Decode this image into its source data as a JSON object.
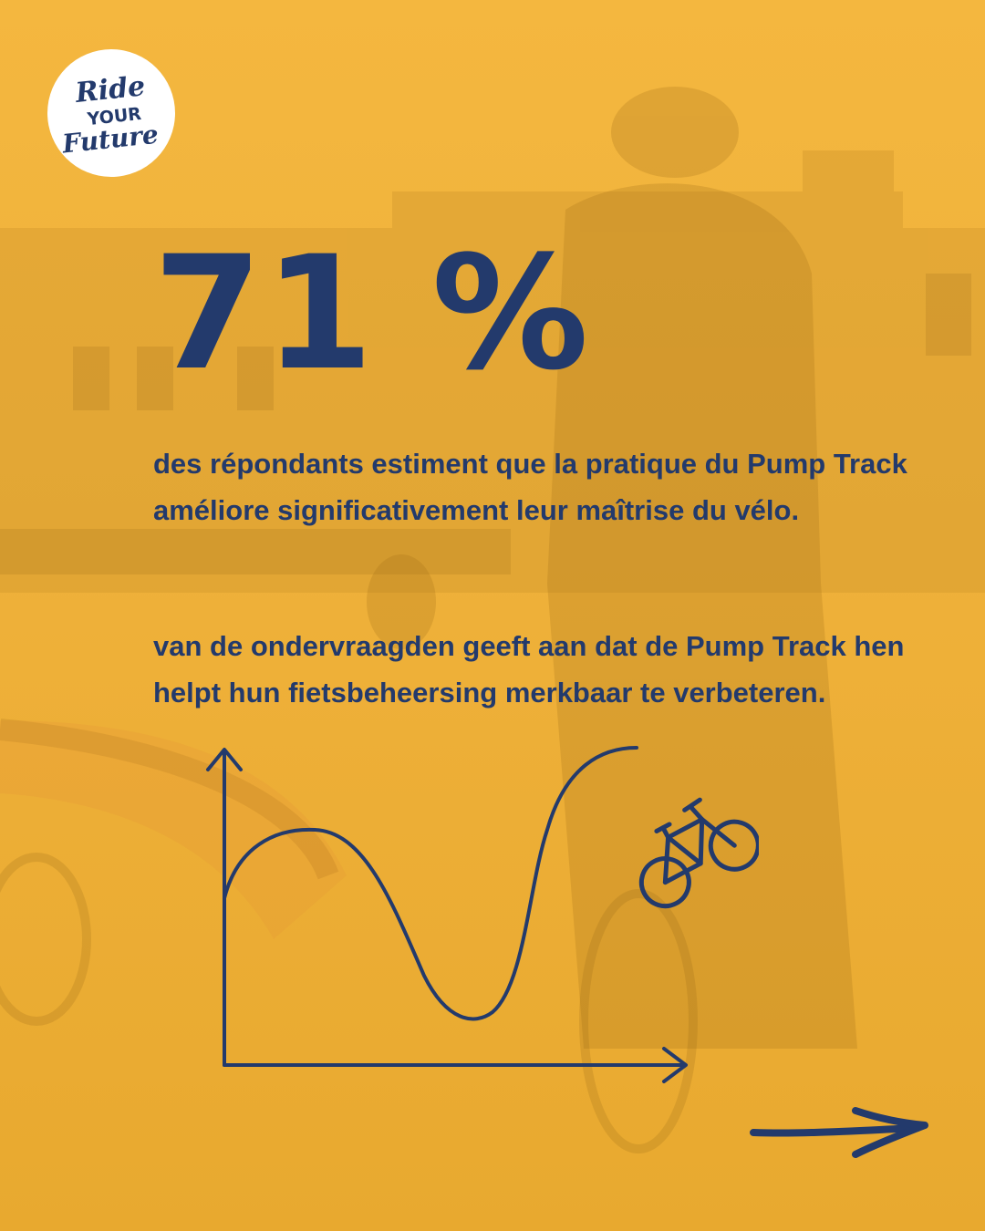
{
  "logo": {
    "name": "ride-your-future-logo",
    "lines": [
      "Ride",
      "YOUR",
      "Future"
    ],
    "color": "#233a6c"
  },
  "stat": {
    "value": "71 %",
    "text_fr": "des répondants estiment que la pratique du Pump Track améliore significativement leur maîtrise du vélo.",
    "text_nl": "van de ondervraagden geeft aan dat de Pump Track hen helpt hun fietsbeheersing merkbaar te verbeteren."
  },
  "illustration": {
    "graph_icon": "wave-graph-icon",
    "bike_icon": "bicycle-icon"
  },
  "navigation": {
    "next_icon": "arrow-right-icon"
  },
  "colors": {
    "background": "#f0b33b",
    "text": "#233a6c"
  }
}
